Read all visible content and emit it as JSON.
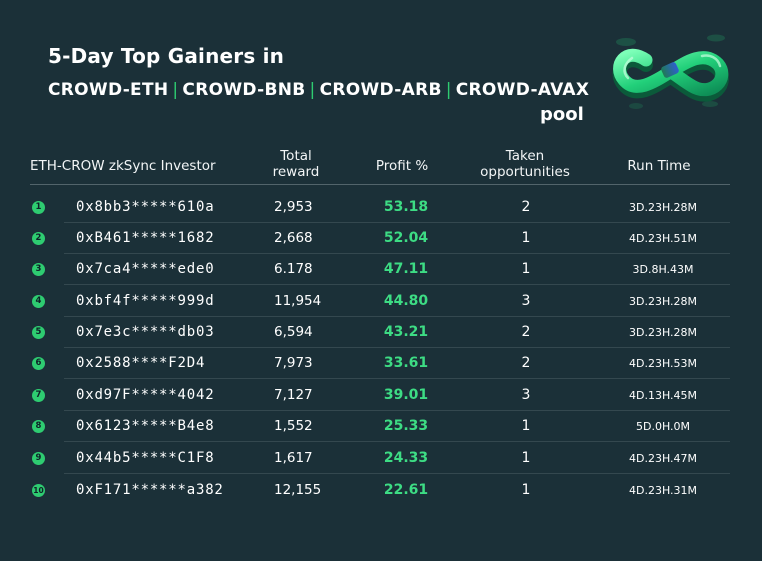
{
  "title": {
    "line1": "5-Day Top Gainers in",
    "pools": [
      "CROWD-ETH",
      "CROWD-BNB",
      "CROWD-ARB",
      "CROWD-AVAX"
    ],
    "separator": "|",
    "line3": "pool"
  },
  "colors": {
    "background": "#1b3038",
    "accent": "#2ecc71",
    "profit": "#3ddc84",
    "text": "#ffffff"
  },
  "logo_icon": "infinity-loop-logo",
  "table": {
    "headers": {
      "investor": "ETH-CROW zkSync Investor",
      "reward_l1": "Total",
      "reward_l2": "reward",
      "profit": "Profit %",
      "taken_l1": "Taken",
      "taken_l2": "opportunities",
      "runtime": "Run Time"
    },
    "rows": [
      {
        "rank": "1",
        "address": "0x8bb3*****610a",
        "reward": "2,953",
        "profit": "53.18",
        "taken": "2",
        "runtime": "3D.23H.28M"
      },
      {
        "rank": "2",
        "address": "0xB461*****1682",
        "reward": "2,668",
        "profit": "52.04",
        "taken": "1",
        "runtime": "4D.23H.51M"
      },
      {
        "rank": "3",
        "address": "0x7ca4*****ede0",
        "reward": "6.178",
        "profit": "47.11",
        "taken": "1",
        "runtime": "3D.8H.43M"
      },
      {
        "rank": "4",
        "address": "0xbf4f*****999d",
        "reward": "11,954",
        "profit": "44.80",
        "taken": "3",
        "runtime": "3D.23H.28M"
      },
      {
        "rank": "5",
        "address": "0x7e3c*****db03",
        "reward": "6,594",
        "profit": "43.21",
        "taken": "2",
        "runtime": "3D.23H.28M"
      },
      {
        "rank": "6",
        "address": "0x2588****F2D4",
        "reward": "7,973",
        "profit": "33.61",
        "taken": "2",
        "runtime": "4D.23H.53M"
      },
      {
        "rank": "7",
        "address": "0xd97F*****4042",
        "reward": "7,127",
        "profit": "39.01",
        "taken": "3",
        "runtime": "4D.13H.45M"
      },
      {
        "rank": "8",
        "address": "0x6123*****B4e8",
        "reward": "1,552",
        "profit": "25.33",
        "taken": "1",
        "runtime": "5D.0H.0M"
      },
      {
        "rank": "9",
        "address": "0x44b5*****C1F8",
        "reward": "1,617",
        "profit": "24.33",
        "taken": "1",
        "runtime": "4D.23H.47M"
      },
      {
        "rank": "10",
        "address": "0xF171******a382",
        "reward": "12,155",
        "profit": "22.61",
        "taken": "1",
        "runtime": "4D.23H.31M"
      }
    ]
  }
}
